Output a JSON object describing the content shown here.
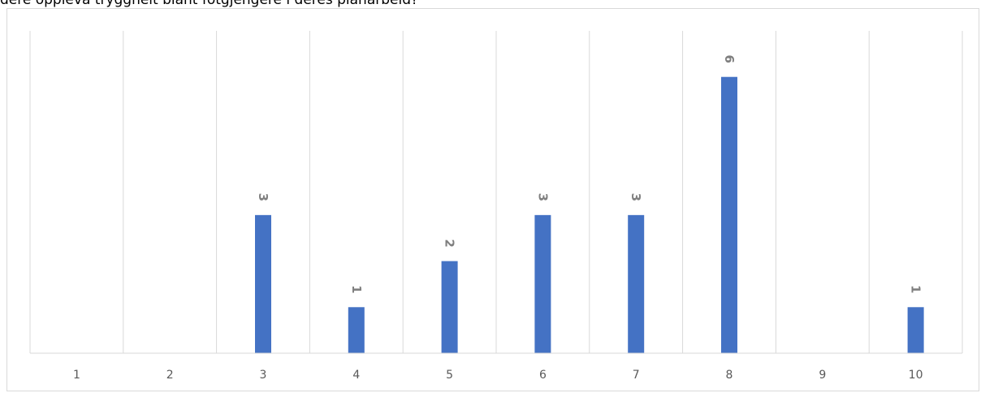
{
  "caption": "dere oppleva tryggheit blant fotgjengere i deres planarbeid?",
  "chart_data": {
    "type": "bar",
    "categories": [
      "1",
      "2",
      "3",
      "4",
      "5",
      "6",
      "7",
      "8",
      "9",
      "10"
    ],
    "values": [
      0,
      0,
      3,
      1,
      2,
      3,
      3,
      6,
      0,
      1
    ],
    "data_labels": [
      "",
      "",
      "3",
      "1",
      "2",
      "3",
      "3",
      "6",
      "",
      "1"
    ],
    "ylim": [
      0,
      7
    ],
    "grid": "vertical",
    "data_label_rotation": "rotated 90° clockwise",
    "bar_color": "#4472c4",
    "grid_color": "#d9d9d9",
    "label_color": "#7f7f7f",
    "tick_color": "#595959"
  }
}
